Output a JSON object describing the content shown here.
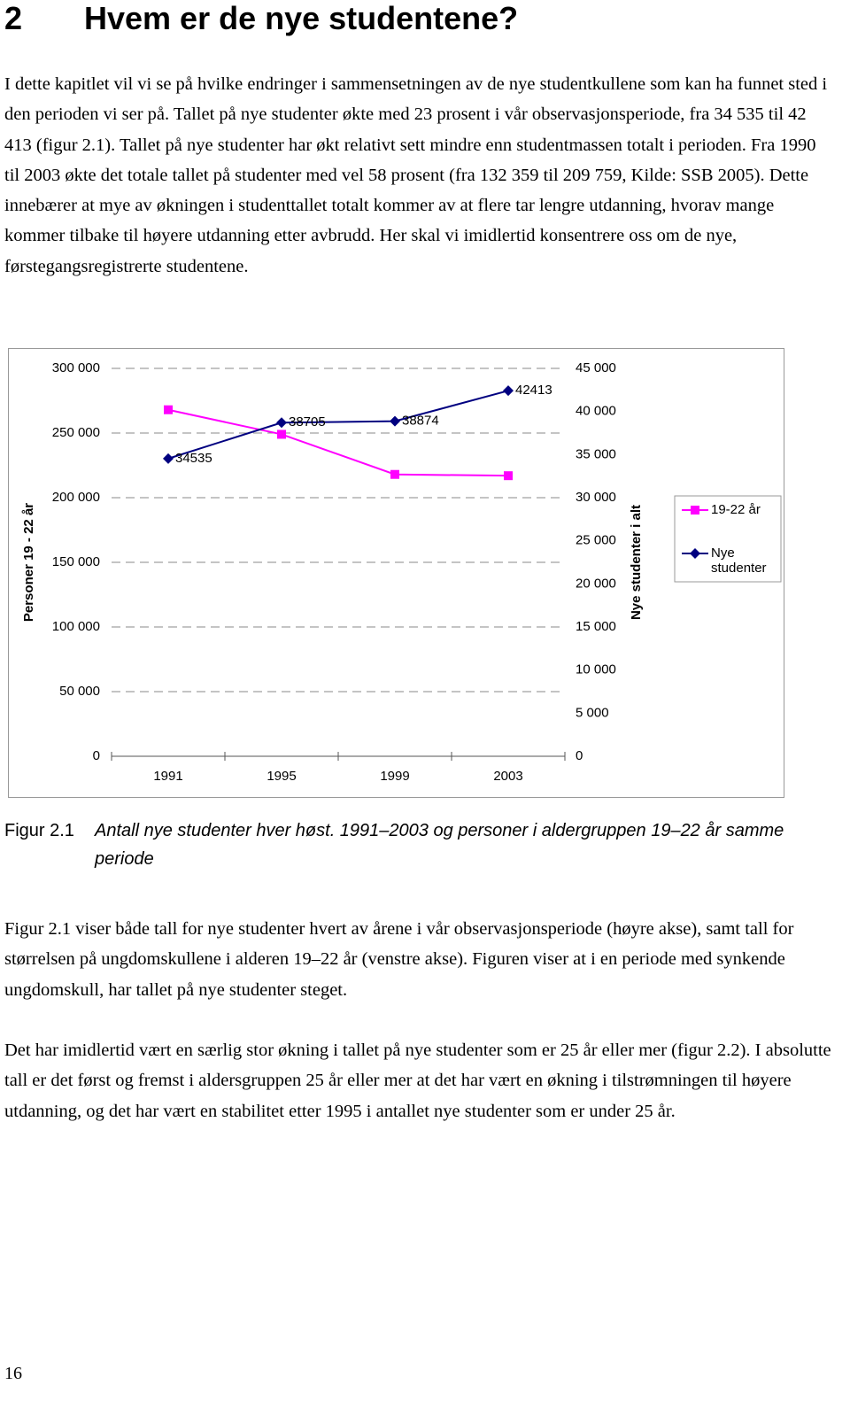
{
  "heading": {
    "number": "2",
    "title": "Hvem er de nye studentene?"
  },
  "paragraphs": [
    "I dette kapitlet vil vi se på hvilke endringer i sammensetningen av de nye studentkullene som kan ha funnet sted i den perioden vi ser på. Tallet på nye studenter økte med 23 prosent i vår observasjonsperiode, fra 34 535 til 42 413 (figur 2.1). Tallet på nye studenter har økt relativt sett mindre enn studentmassen totalt i perioden. Fra 1990 til 2003 økte det totale tallet på studenter med vel 58 prosent (fra 132 359 til 209 759, Kilde: SSB 2005). Dette innebærer at mye av økningen i studenttallet totalt kommer av at flere tar lengre utdanning, hvorav mange kommer tilbake til høyere utdanning etter avbrudd. Her skal vi imidlertid konsentrere oss om de nye, førstegangsregistrerte studentene.",
    "Figur 2.1 viser både tall for nye studenter hvert av årene i vår observasjonsperiode (høyre akse), samt tall for størrelsen på ungdomskullene i alderen 19–22 år (venstre akse). Figuren viser at i en periode med synkende ungdomskull, har tallet på nye studenter steget.",
    "Det har imidlertid vært en særlig stor økning i tallet på nye studenter som er 25 år eller mer (figur 2.2). I absolutte tall er det først og fremst i aldersgruppen 25 år eller mer at det har vært en økning i tilstrømningen til høyere utdanning, og det har vært en stabilitet etter 1995 i antallet nye studenter som er under 25 år."
  ],
  "figure_caption": {
    "label": "Figur 2.1",
    "text": "Antall nye studenter hver høst. 1991–2003 og personer i aldergruppen 19–22 år samme periode"
  },
  "page_number": "16",
  "chart_data": {
    "type": "line",
    "y_label": "Personer 19 - 22 år",
    "y2_label": "Nye studenter i alt",
    "categories": [
      "1991",
      "1995",
      "1999",
      "2003"
    ],
    "ylim": [
      0,
      300000
    ],
    "yticks": [
      0,
      {
        "value": 50000,
        "label": "50 000"
      },
      {
        "value": 100000,
        "label": "100 000"
      },
      {
        "value": 150000,
        "label": "150 000"
      },
      {
        "value": 200000,
        "label": "200 000"
      },
      {
        "value": 250000,
        "label": "250 000"
      },
      {
        "value": 300000,
        "label": "300 000"
      }
    ],
    "y2lim": [
      0,
      45000
    ],
    "y2ticks": [
      0,
      {
        "value": 5000,
        "label": "5 000"
      },
      {
        "value": 10000,
        "label": "10 000"
      },
      {
        "value": 15000,
        "label": "15 000"
      },
      {
        "value": 20000,
        "label": "20 000"
      },
      {
        "value": 25000,
        "label": "25 000"
      },
      {
        "value": 30000,
        "label": "30 000"
      },
      {
        "value": 35000,
        "label": "35 000"
      },
      {
        "value": 40000,
        "label": "40 000"
      },
      {
        "value": 45000,
        "label": "45 000"
      }
    ],
    "grid": true,
    "legend": "right",
    "series": [
      {
        "name": "19-22 år",
        "color": "#ff00ff",
        "marker": "square",
        "values": [
          268000,
          249000,
          218000,
          217000
        ]
      },
      {
        "name": "Nye studenter",
        "color": "#000080",
        "marker": "diamond",
        "axis": "y2",
        "data_labels": true,
        "values": [
          34535,
          38705,
          38874,
          42413
        ]
      }
    ]
  }
}
